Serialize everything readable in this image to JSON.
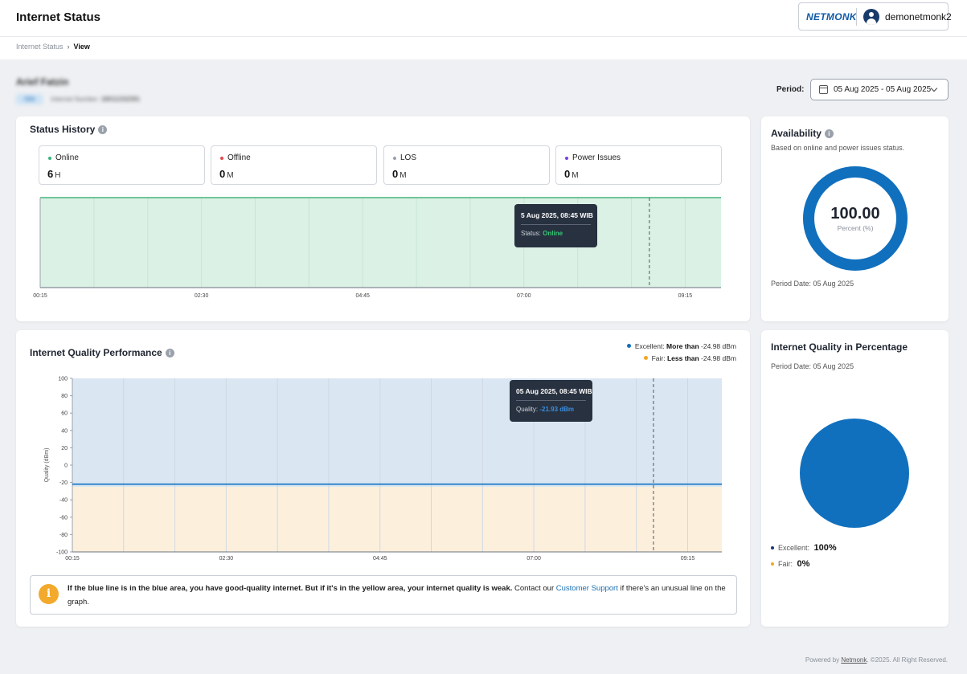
{
  "header": {
    "title": "Internet Status",
    "brand": "NETMONK",
    "username": "demonetmonk2"
  },
  "breadcrumb": {
    "items": [
      "Internet Status",
      "View"
    ]
  },
  "subject": {
    "name": "Arief Fatzin",
    "chip": "ISN",
    "meta_label": "Internet Number:",
    "meta_value": "18011332391"
  },
  "period": {
    "label": "Period:",
    "value": "05 Aug 2025 - 05 Aug 2025"
  },
  "status_history": {
    "title": "Status History",
    "stats": [
      {
        "label": "Online",
        "value": "6",
        "unit": "H",
        "color": "#36b37e"
      },
      {
        "label": "Offline",
        "value": "0",
        "unit": "M",
        "color": "#e5484d"
      },
      {
        "label": "LOS",
        "value": "0",
        "unit": "M",
        "color": "#9aa1ab"
      },
      {
        "label": "Power Issues",
        "value": "0",
        "unit": "M",
        "color": "#7b3fe4"
      }
    ],
    "tooltip": {
      "title": "5 Aug 2025, 08:45 WIB",
      "label": "Status:",
      "value": "Online",
      "value_color": "#36c777"
    }
  },
  "availability": {
    "title": "Availability",
    "subtitle": "Based on online and power issues status.",
    "value": "100.00",
    "unit_label": "Percent (%)",
    "period_date": "Period Date: 05 Aug 2025",
    "percent": 100,
    "color": "#1170bd"
  },
  "quality_performance": {
    "title": "Internet Quality Performance",
    "legend": [
      {
        "label": "Excellent:",
        "bold": "More than",
        "value": "-24.98 dBm",
        "color": "#1170bd"
      },
      {
        "label": "Fair:",
        "bold": "Less than",
        "value": "-24.98 dBm",
        "color": "#f5a623"
      }
    ],
    "tooltip": {
      "title": "05 Aug 2025, 08:45 WIB",
      "label": "Quality:",
      "value": "-21.93 dBm",
      "value_color": "#3b8fe0"
    },
    "note": {
      "bold": "If the blue line is in the blue area, you have good-quality internet. But if it's in the yellow area, your internet quality is weak.",
      "before_link": " Contact our ",
      "link": "Customer Support",
      "after_link": " if there's an unusual line on the graph."
    }
  },
  "quality_percentage": {
    "title": "Internet Quality in Percentage",
    "period_date": "Period Date: 05 Aug 2025",
    "legend": [
      {
        "label": "Excellent:",
        "value": "100%",
        "color": "#173b6b"
      },
      {
        "label": "Fair:",
        "value": "0%",
        "color": "#f5a623"
      }
    ]
  },
  "footer": {
    "prefix": "Powered by ",
    "link": "Netmonk",
    "suffix": ". ©2025. All Right Reserved."
  },
  "chart_data": [
    {
      "type": "area",
      "title": "Status History",
      "x_ticks": [
        "00:15",
        "02:30",
        "04:45",
        "07:00",
        "09:15"
      ],
      "series": [
        {
          "name": "Online",
          "x": [
            "00:15",
            "09:45"
          ],
          "values": [
            1,
            1
          ],
          "color": "#36b37e"
        }
      ],
      "ylim": [
        0,
        1
      ],
      "grid": true,
      "cursor_x": "08:45"
    },
    {
      "type": "line",
      "title": "Internet Quality Performance",
      "ylabel": "Quality (dBm)",
      "x_ticks": [
        "00:15",
        "02:30",
        "04:45",
        "07:00",
        "09:15"
      ],
      "y_ticks": [
        100,
        80,
        60,
        40,
        20,
        0,
        -20,
        -40,
        -60,
        -80,
        -100
      ],
      "ylim": [
        -100,
        100
      ],
      "threshold": -24.98,
      "series": [
        {
          "name": "Quality",
          "x": [
            "00:15",
            "09:45"
          ],
          "values": [
            -21.93,
            -21.93
          ],
          "color": "#1170bd"
        }
      ],
      "grid": true,
      "cursor_x": "08:45"
    },
    {
      "type": "pie",
      "title": "Internet Quality in Percentage",
      "categories": [
        "Excellent",
        "Fair"
      ],
      "values": [
        100,
        0
      ],
      "colors": [
        "#1170bd",
        "#f5a623"
      ]
    }
  ]
}
